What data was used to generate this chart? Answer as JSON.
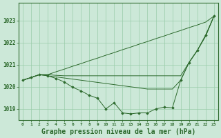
{
  "background_color": "#cce8d8",
  "grid_color": "#99ccaa",
  "line_color": "#2d6a2d",
  "xlabel": "Graphe pression niveau de la mer (hPa)",
  "xlabel_fontsize": 7.0,
  "ylim": [
    1018.5,
    1023.8
  ],
  "xlim": [
    -0.5,
    23.5
  ],
  "yticks": [
    1019,
    1020,
    1021,
    1022,
    1023
  ],
  "xticks": [
    0,
    1,
    2,
    3,
    4,
    5,
    6,
    7,
    8,
    9,
    10,
    11,
    12,
    13,
    14,
    15,
    16,
    17,
    18,
    19,
    20,
    21,
    22,
    23
  ],
  "line_top": [
    1020.3,
    1020.42,
    1020.55,
    1020.55,
    1020.68,
    1020.8,
    1020.93,
    1021.05,
    1021.18,
    1021.3,
    1021.43,
    1021.55,
    1021.68,
    1021.8,
    1021.93,
    1022.05,
    1022.18,
    1022.3,
    1022.43,
    1022.55,
    1022.68,
    1022.8,
    1022.93,
    1023.2
  ],
  "line_flat": [
    1020.3,
    1020.42,
    1020.55,
    1020.55,
    1020.52,
    1020.5,
    1020.5,
    1020.5,
    1020.5,
    1020.5,
    1020.5,
    1020.5,
    1020.5,
    1020.5,
    1020.5,
    1020.5,
    1020.5,
    1020.5,
    1020.5,
    1020.5,
    1021.1,
    1021.65,
    1022.3,
    1023.2
  ],
  "line_mid": [
    1020.3,
    1020.42,
    1020.55,
    1020.5,
    1020.45,
    1020.4,
    1020.35,
    1020.3,
    1020.25,
    1020.2,
    1020.15,
    1020.1,
    1020.05,
    1020.0,
    1019.95,
    1019.9,
    1019.9,
    1019.9,
    1019.9,
    1020.3,
    1021.1,
    1021.65,
    1022.3,
    1023.2
  ],
  "line_main": [
    1020.3,
    1020.42,
    1020.55,
    1020.5,
    1020.38,
    1020.22,
    1019.98,
    1019.82,
    1019.62,
    1019.48,
    1019.0,
    1019.28,
    1018.82,
    1018.78,
    1018.82,
    1018.82,
    1019.0,
    1019.08,
    1019.05,
    1020.3,
    1021.1,
    1021.65,
    1022.35,
    1023.2
  ]
}
